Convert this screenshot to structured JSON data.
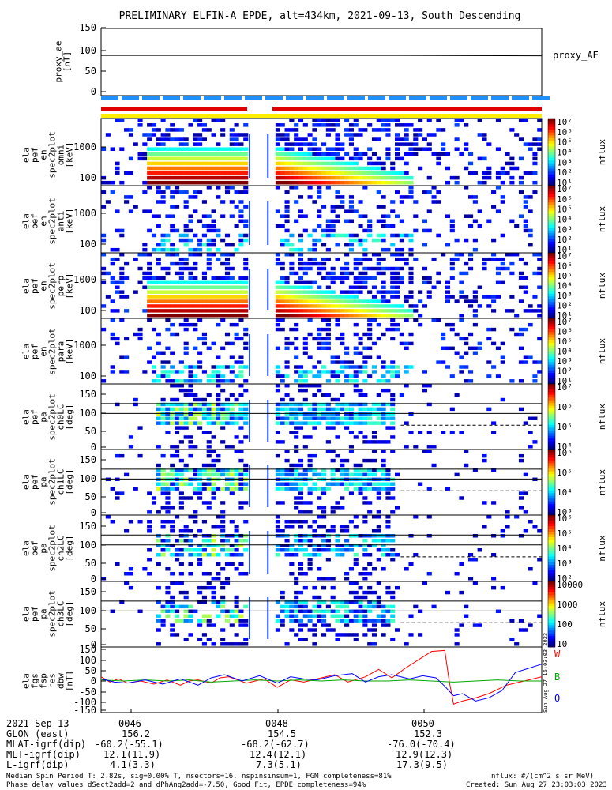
{
  "title": "PRELIMINARY ELFIN-A EPDE, alt=434km, 2021-09-13, South Descending",
  "chart_data": [
    {
      "type": "line",
      "ylabel": [
        "proxy_ae",
        "[nT]"
      ],
      "yticks": [
        "150",
        "100",
        "50",
        "0"
      ],
      "ylim": [
        -10,
        160
      ],
      "series": [
        {
          "name": "proxy_AE",
          "x": [
            0.0,
            0.66,
            1.0
          ],
          "values": [
            85,
            85,
            84
          ]
        }
      ]
    },
    {
      "type": "heatmap",
      "ylabel": [
        "ela",
        "pef",
        "en",
        "spec2plot",
        "omni",
        "[keV]"
      ],
      "yticks": [
        "1000",
        "100"
      ],
      "colorbar": {
        "label": "nflux",
        "ticks": [
          "10^7",
          "10^6",
          "10^5",
          "10^4",
          "10^3",
          "10^2",
          "10^1"
        ]
      }
    },
    {
      "type": "heatmap",
      "ylabel": [
        "ela",
        "pef",
        "en",
        "spec2plot",
        "anti",
        "[keV]"
      ],
      "yticks": [
        "1000",
        "100"
      ],
      "colorbar": {
        "label": "nflux",
        "ticks": [
          "10^7",
          "10^6",
          "10^5",
          "10^4",
          "10^3",
          "10^2",
          "10^1"
        ]
      }
    },
    {
      "type": "heatmap",
      "ylabel": [
        "ela",
        "pef",
        "en",
        "spec2plot",
        "perp",
        "[keV]"
      ],
      "yticks": [
        "1000",
        "100"
      ],
      "colorbar": {
        "label": "nflux",
        "ticks": [
          "10^7",
          "10^6",
          "10^5",
          "10^4",
          "10^3",
          "10^2",
          "10^1"
        ]
      }
    },
    {
      "type": "heatmap",
      "ylabel": [
        "ela",
        "pef",
        "en",
        "spec2plot",
        "para",
        "[keV]"
      ],
      "yticks": [
        "1000",
        "100"
      ],
      "colorbar": {
        "label": "nflux",
        "ticks": [
          "10^7",
          "10^6",
          "10^5",
          "10^4",
          "10^3",
          "10^2",
          "10^1"
        ]
      }
    },
    {
      "type": "heatmap",
      "ylabel": [
        "ela",
        "pef",
        "pa",
        "spec2plot",
        "ch0LC",
        "[deg]"
      ],
      "yticks": [
        "150",
        "100",
        "50",
        "0"
      ],
      "colorbar": {
        "label": "nflux",
        "ticks": [
          "10^7",
          "10^6",
          "10^5",
          "10^4"
        ]
      }
    },
    {
      "type": "heatmap",
      "ylabel": [
        "ela",
        "pef",
        "pa",
        "spec2plot",
        "ch1LC",
        "[deg]"
      ],
      "yticks": [
        "150",
        "100",
        "50",
        "0"
      ],
      "colorbar": {
        "label": "nflux",
        "ticks": [
          "10^6",
          "10^5",
          "10^4",
          "10^3"
        ]
      }
    },
    {
      "type": "heatmap",
      "ylabel": [
        "ela",
        "pef",
        "pa",
        "spec2plot",
        "ch2LC",
        "[deg]"
      ],
      "yticks": [
        "150",
        "100",
        "50",
        "0"
      ],
      "colorbar": {
        "label": "nflux",
        "ticks": [
          "10^6",
          "10^5",
          "10^4",
          "10^3",
          "10^2"
        ]
      }
    },
    {
      "type": "heatmap",
      "ylabel": [
        "ela",
        "pef",
        "pa",
        "spec2plot",
        "ch3LC",
        "[deg]"
      ],
      "yticks": [
        "150",
        "100",
        "50",
        "0"
      ],
      "colorbar": {
        "label": "nflux",
        "ticks": [
          "10000",
          "1000",
          "100",
          "10"
        ]
      }
    },
    {
      "type": "line",
      "ylabel": [
        "ela",
        "fgs",
        "fsp",
        "res",
        "dbw",
        "[nT]"
      ],
      "yticks": [
        "150",
        "100",
        "50",
        "0",
        "-50",
        "-100",
        "-150"
      ],
      "ylim": [
        -160,
        160
      ],
      "series": [
        {
          "name": "W",
          "color": "#ff0000",
          "x": [
            0.0,
            0.02,
            0.04,
            0.06,
            0.09,
            0.12,
            0.15,
            0.18,
            0.2,
            0.22,
            0.25,
            0.27,
            0.29,
            0.31,
            0.33,
            0.35,
            0.37,
            0.4,
            0.43,
            0.46,
            0.5,
            0.53,
            0.56,
            0.6,
            0.63,
            0.66,
            0.69,
            0.72,
            0.75,
            0.78,
            0.79,
            0.8,
            0.82,
            0.85,
            0.88,
            0.9,
            0.92,
            0.95,
            0.98,
            1.0
          ],
          "values": [
            20,
            -5,
            10,
            -10,
            0,
            -15,
            5,
            -20,
            0,
            5,
            -10,
            15,
            20,
            5,
            -10,
            0,
            10,
            -30,
            5,
            -5,
            15,
            30,
            -5,
            20,
            55,
            15,
            60,
            100,
            140,
            145,
            0,
            -110,
            -95,
            -80,
            -60,
            -40,
            -20,
            -5,
            10,
            20
          ]
        },
        {
          "name": "B",
          "color": "#00aa00",
          "x": [
            0.0,
            0.05,
            0.1,
            0.15,
            0.2,
            0.25,
            0.3,
            0.35,
            0.4,
            0.45,
            0.5,
            0.55,
            0.6,
            0.65,
            0.7,
            0.75,
            0.8,
            0.85,
            0.9,
            0.95,
            1.0
          ],
          "values": [
            5,
            0,
            5,
            0,
            5,
            -5,
            0,
            5,
            0,
            5,
            0,
            5,
            0,
            0,
            5,
            0,
            -5,
            0,
            5,
            0,
            0
          ]
        },
        {
          "name": "O",
          "color": "#0000ff",
          "x": [
            0.0,
            0.03,
            0.06,
            0.1,
            0.14,
            0.18,
            0.22,
            0.25,
            0.28,
            0.32,
            0.36,
            0.4,
            0.43,
            0.46,
            0.49,
            0.53,
            0.57,
            0.6,
            0.63,
            0.66,
            0.7,
            0.73,
            0.76,
            0.78,
            0.8,
            0.82,
            0.85,
            0.88,
            0.91,
            0.94,
            0.97,
            1.0
          ],
          "values": [
            10,
            -5,
            -10,
            5,
            -15,
            10,
            -20,
            15,
            30,
            0,
            25,
            -10,
            20,
            10,
            5,
            25,
            35,
            -5,
            20,
            30,
            10,
            25,
            15,
            -25,
            -70,
            -60,
            -95,
            -80,
            -45,
            40,
            60,
            80
          ]
        }
      ]
    }
  ],
  "legend_letters": [
    "W",
    "B",
    "O"
  ],
  "x_ticks": [
    "0046",
    "0048",
    "0050"
  ],
  "info_labels": [
    "2021 Sep 13",
    "GLON (east)",
    "MLAT-igrf(dip)",
    "MLT-igrf(dip)",
    "L-igrf(dip)"
  ],
  "info_values": [
    [
      "156.2",
      "-60.2(-55.1)",
      "12.1(11.9)",
      "4.1(3.3)"
    ],
    [
      "154.5",
      "-68.2(-62.7)",
      "12.4(12.1)",
      "7.3(5.1)"
    ],
    [
      "152.3",
      "-76.0(-70.4)",
      "12.9(12.3)",
      "17.3(9.5)"
    ]
  ],
  "footer": {
    "line1": "Median Spin Period T: 2.82s, sig=0.00% T, nsectors=16, nspinsinsum=1, FGM completeness=81%",
    "line2": "Phase delay values dSect2add=2 and dPhAng2add=-7.50, Good Fit, EPDE completeness=94%",
    "units": "nflux: #/(cm^2 s sr MeV)",
    "created": "Created: Sun Aug 27 23:03:03 2023",
    "vertical_stamp": "Sun Aug 27 16:03:03 2023"
  },
  "colors": {
    "bar_blue": "#1e90ff",
    "bar_red": "#e00000",
    "bar_yellow": "#ffee00"
  }
}
